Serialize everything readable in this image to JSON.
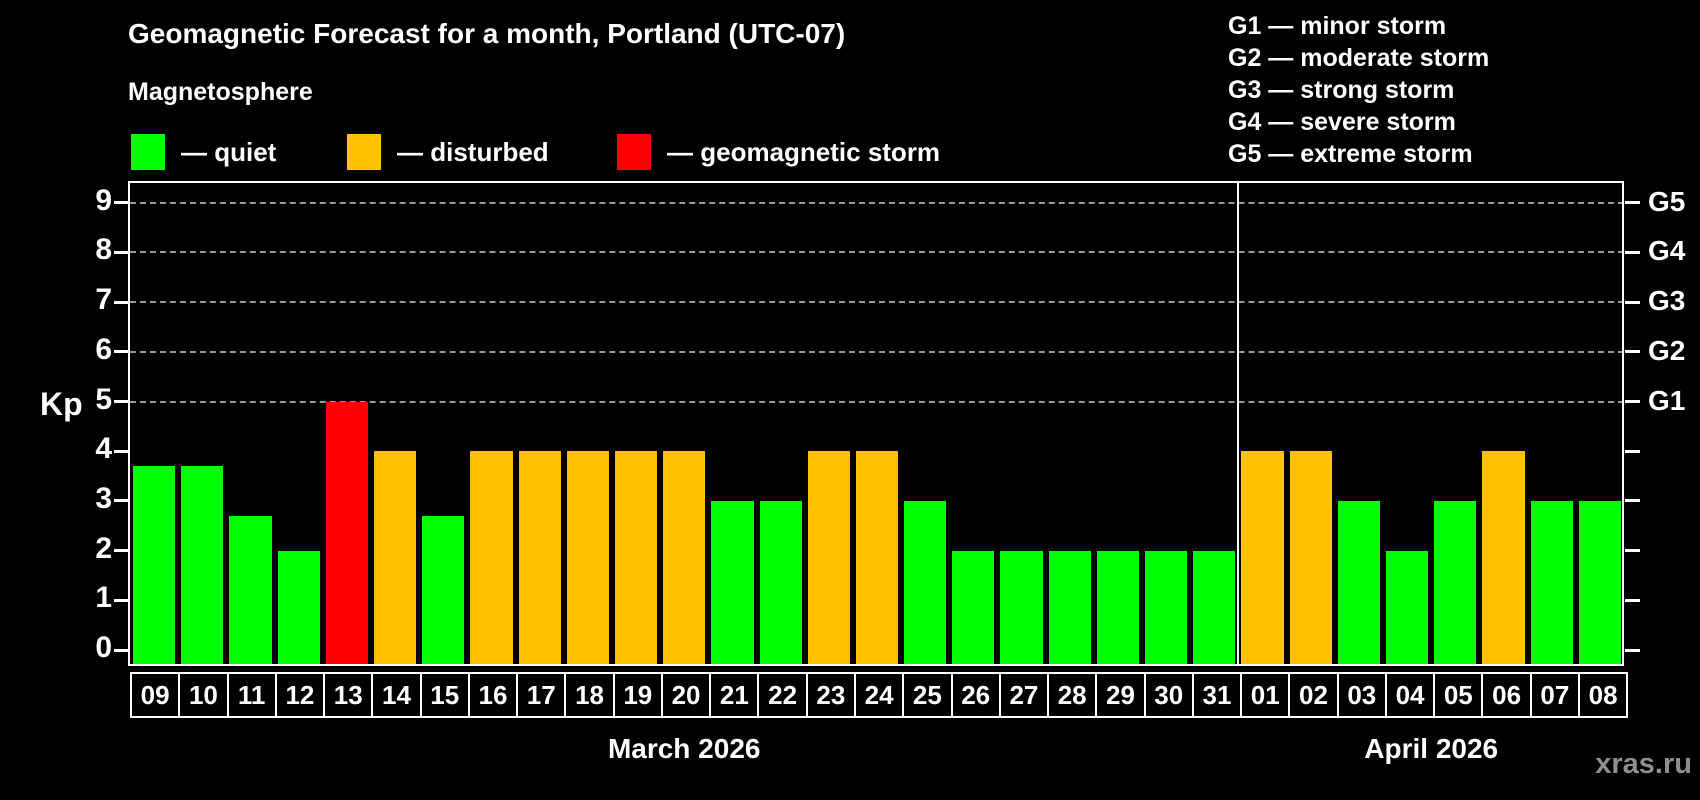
{
  "page": {
    "title": "Geomagnetic Forecast for a month, Portland (UTC-07)",
    "subtitle": "Magnetosphere",
    "watermark": "xras.ru"
  },
  "legend": {
    "items": [
      {
        "key": "quiet",
        "label": "— quiet",
        "color": "#00ff00"
      },
      {
        "key": "disturbed",
        "label": "— disturbed",
        "color": "#ffc000"
      },
      {
        "key": "storm",
        "label": "— geomagnetic storm",
        "color": "#ff0000"
      }
    ]
  },
  "storm_scale": {
    "items": [
      "G1 — minor storm",
      "G2 — moderate storm",
      "G3 — strong storm",
      "G4 — severe storm",
      "G5 — extreme storm"
    ]
  },
  "chart_data": {
    "type": "bar",
    "title": "Geomagnetic Forecast for a month, Portland (UTC-07)",
    "ylabel": "Kp",
    "ylim": [
      0,
      9.4
    ],
    "y_ticks": [
      0,
      1,
      2,
      3,
      4,
      5,
      6,
      7,
      8,
      9
    ],
    "gridlines_at": [
      5,
      6,
      7,
      8,
      9
    ],
    "grid": "dashed horizontal lines at Kp 5 through 9",
    "legend_position": "top",
    "right_axis_labels": [
      {
        "text": "G1",
        "kp": 5
      },
      {
        "text": "G2",
        "kp": 6
      },
      {
        "text": "G3",
        "kp": 7
      },
      {
        "text": "G4",
        "kp": 8
      },
      {
        "text": "G5",
        "kp": 9
      }
    ],
    "status_colors": {
      "quiet": "#00ff00",
      "disturbed": "#ffc000",
      "storm": "#ff0000"
    },
    "axis_color": "#ffffff",
    "grid_color": "#999999",
    "background_color": "#000000",
    "months": [
      {
        "label": "March 2026",
        "points": [
          {
            "day": "09",
            "kp": 3.7,
            "status": "quiet"
          },
          {
            "day": "10",
            "kp": 3.7,
            "status": "quiet"
          },
          {
            "day": "11",
            "kp": 2.7,
            "status": "quiet"
          },
          {
            "day": "12",
            "kp": 2.0,
            "status": "quiet"
          },
          {
            "day": "13",
            "kp": 5.0,
            "status": "storm"
          },
          {
            "day": "14",
            "kp": 4.0,
            "status": "disturbed"
          },
          {
            "day": "15",
            "kp": 2.7,
            "status": "quiet"
          },
          {
            "day": "16",
            "kp": 4.0,
            "status": "disturbed"
          },
          {
            "day": "17",
            "kp": 4.0,
            "status": "disturbed"
          },
          {
            "day": "18",
            "kp": 4.0,
            "status": "disturbed"
          },
          {
            "day": "19",
            "kp": 4.0,
            "status": "disturbed"
          },
          {
            "day": "20",
            "kp": 4.0,
            "status": "disturbed"
          },
          {
            "day": "21",
            "kp": 3.0,
            "status": "quiet"
          },
          {
            "day": "22",
            "kp": 3.0,
            "status": "quiet"
          },
          {
            "day": "23",
            "kp": 4.0,
            "status": "disturbed"
          },
          {
            "day": "24",
            "kp": 4.0,
            "status": "disturbed"
          },
          {
            "day": "25",
            "kp": 3.0,
            "status": "quiet"
          },
          {
            "day": "26",
            "kp": 2.0,
            "status": "quiet"
          },
          {
            "day": "27",
            "kp": 2.0,
            "status": "quiet"
          },
          {
            "day": "28",
            "kp": 2.0,
            "status": "quiet"
          },
          {
            "day": "29",
            "kp": 2.0,
            "status": "quiet"
          },
          {
            "day": "30",
            "kp": 2.0,
            "status": "quiet"
          },
          {
            "day": "31",
            "kp": 2.0,
            "status": "quiet"
          }
        ]
      },
      {
        "label": "April 2026",
        "points": [
          {
            "day": "01",
            "kp": 4.0,
            "status": "disturbed"
          },
          {
            "day": "02",
            "kp": 4.0,
            "status": "disturbed"
          },
          {
            "day": "03",
            "kp": 3.0,
            "status": "quiet"
          },
          {
            "day": "04",
            "kp": 2.0,
            "status": "quiet"
          },
          {
            "day": "05",
            "kp": 3.0,
            "status": "quiet"
          },
          {
            "day": "06",
            "kp": 4.0,
            "status": "disturbed"
          },
          {
            "day": "07",
            "kp": 3.0,
            "status": "quiet"
          },
          {
            "day": "08",
            "kp": 3.0,
            "status": "quiet"
          }
        ]
      }
    ]
  }
}
